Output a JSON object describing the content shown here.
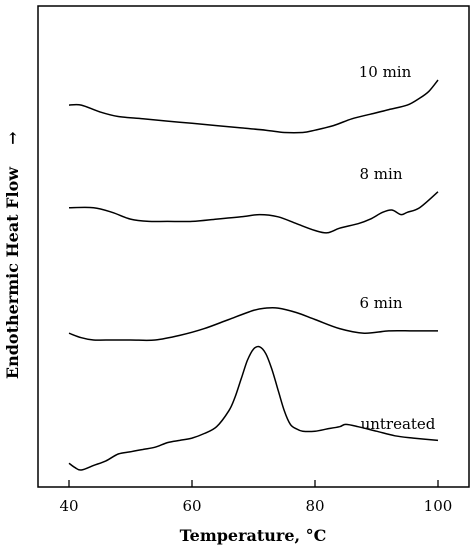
{
  "chart_data": {
    "type": "line",
    "xlabel": "Temperature, °C",
    "ylabel": "Endothermic Heat Flow",
    "ylabel_arrow": "→",
    "xlim": [
      40,
      100
    ],
    "x_ticks": [
      40,
      60,
      80,
      100
    ],
    "y_ticks": [],
    "grid": false,
    "series": [
      {
        "name": "10 min",
        "x": [
          40,
          42,
          45,
          48,
          52,
          56,
          60,
          64,
          68,
          72,
          75,
          78,
          80,
          83,
          86,
          89,
          92,
          95,
          97,
          98.5,
          100
        ],
        "y": [
          0.8,
          0.8,
          0.785,
          0.775,
          0.77,
          0.765,
          0.76,
          0.755,
          0.75,
          0.745,
          0.74,
          0.74,
          0.745,
          0.755,
          0.77,
          0.78,
          0.79,
          0.8,
          0.815,
          0.83,
          0.855
        ]
      },
      {
        "name": "8 min",
        "x": [
          40,
          44,
          47,
          50,
          53,
          56,
          60,
          64,
          68,
          71,
          74,
          77,
          80,
          82,
          84,
          87,
          89,
          91,
          92.5,
          94,
          95,
          97,
          100
        ],
        "y": [
          0.575,
          0.575,
          0.565,
          0.55,
          0.545,
          0.545,
          0.545,
          0.55,
          0.555,
          0.56,
          0.555,
          0.54,
          0.525,
          0.52,
          0.53,
          0.54,
          0.55,
          0.565,
          0.57,
          0.56,
          0.565,
          0.575,
          0.61
        ]
      },
      {
        "name": "6 min",
        "x": [
          40,
          42,
          44,
          46,
          50,
          54,
          58,
          62,
          66,
          70,
          72,
          74,
          77,
          80,
          84,
          88,
          92,
          96,
          100
        ],
        "y": [
          0.3,
          0.29,
          0.285,
          0.285,
          0.285,
          0.285,
          0.295,
          0.31,
          0.33,
          0.35,
          0.355,
          0.355,
          0.345,
          0.33,
          0.31,
          0.3,
          0.305,
          0.305,
          0.305
        ]
      },
      {
        "name": "untreated",
        "x": [
          40,
          41,
          42,
          44,
          46,
          48,
          50,
          52,
          54,
          56,
          58,
          60,
          62,
          64,
          66,
          67,
          68,
          69,
          70,
          71,
          72,
          73,
          74,
          75,
          76,
          77,
          78,
          80,
          82,
          84,
          85,
          87,
          90,
          93,
          96,
          100
        ],
        "y": [
          0.015,
          0.005,
          0.0,
          0.01,
          0.02,
          0.035,
          0.04,
          0.045,
          0.05,
          0.06,
          0.065,
          0.07,
          0.08,
          0.095,
          0.13,
          0.16,
          0.2,
          0.24,
          0.265,
          0.27,
          0.255,
          0.22,
          0.175,
          0.13,
          0.1,
          0.09,
          0.085,
          0.085,
          0.09,
          0.095,
          0.1,
          0.095,
          0.085,
          0.075,
          0.07,
          0.065
        ]
      }
    ]
  }
}
